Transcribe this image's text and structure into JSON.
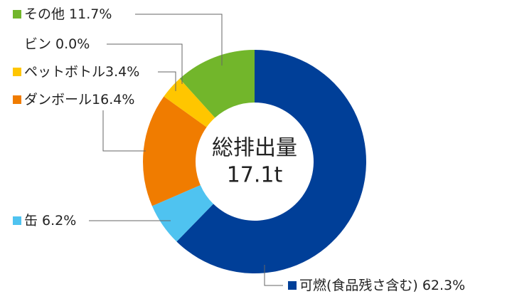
{
  "chart_data": {
    "type": "donut",
    "center_text": [
      "総排出量",
      "17.1t"
    ],
    "categories": [
      "可燃(食品残さ含む)",
      "缶",
      "ダンボール",
      "ペットボトル",
      "ビン",
      "その他"
    ],
    "values": [
      62.3,
      6.2,
      16.4,
      3.4,
      0.0,
      11.7
    ],
    "value_labels": [
      "62.3%",
      "6.2%",
      "16.4%",
      "3.4%",
      "0.0%",
      "11.7%"
    ],
    "colors": [
      "#003f98",
      "#4fc3f0",
      "#f07c00",
      "#ffc600",
      null,
      "#72b62b"
    ]
  }
}
